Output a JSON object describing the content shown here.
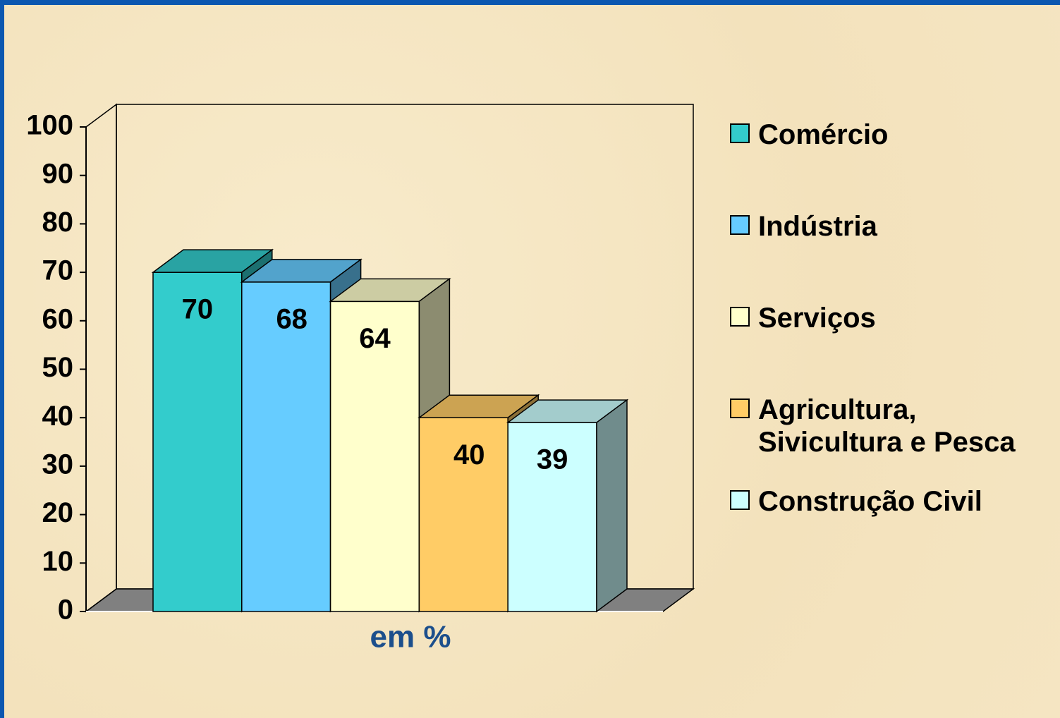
{
  "chart_data": {
    "type": "bar3d",
    "categories": [
      "em %"
    ],
    "series": [
      {
        "name": "Comércio",
        "color": "#33CCCC",
        "values": [
          70
        ]
      },
      {
        "name": "Indústria",
        "color": "#66CCFF",
        "values": [
          68
        ]
      },
      {
        "name": "Serviços",
        "color": "#FFFFCC",
        "values": [
          64
        ]
      },
      {
        "name": "Agricultura, Sivicultura e Pesca",
        "color": "#FFCC66",
        "values": [
          40
        ]
      },
      {
        "name": "Construção Civil",
        "color": "#CCFFFF",
        "values": [
          39
        ]
      }
    ],
    "ylim": [
      0,
      100
    ],
    "yticks": [
      0,
      10,
      20,
      30,
      40,
      50,
      60,
      70,
      80,
      90,
      100
    ],
    "legend": "right"
  }
}
